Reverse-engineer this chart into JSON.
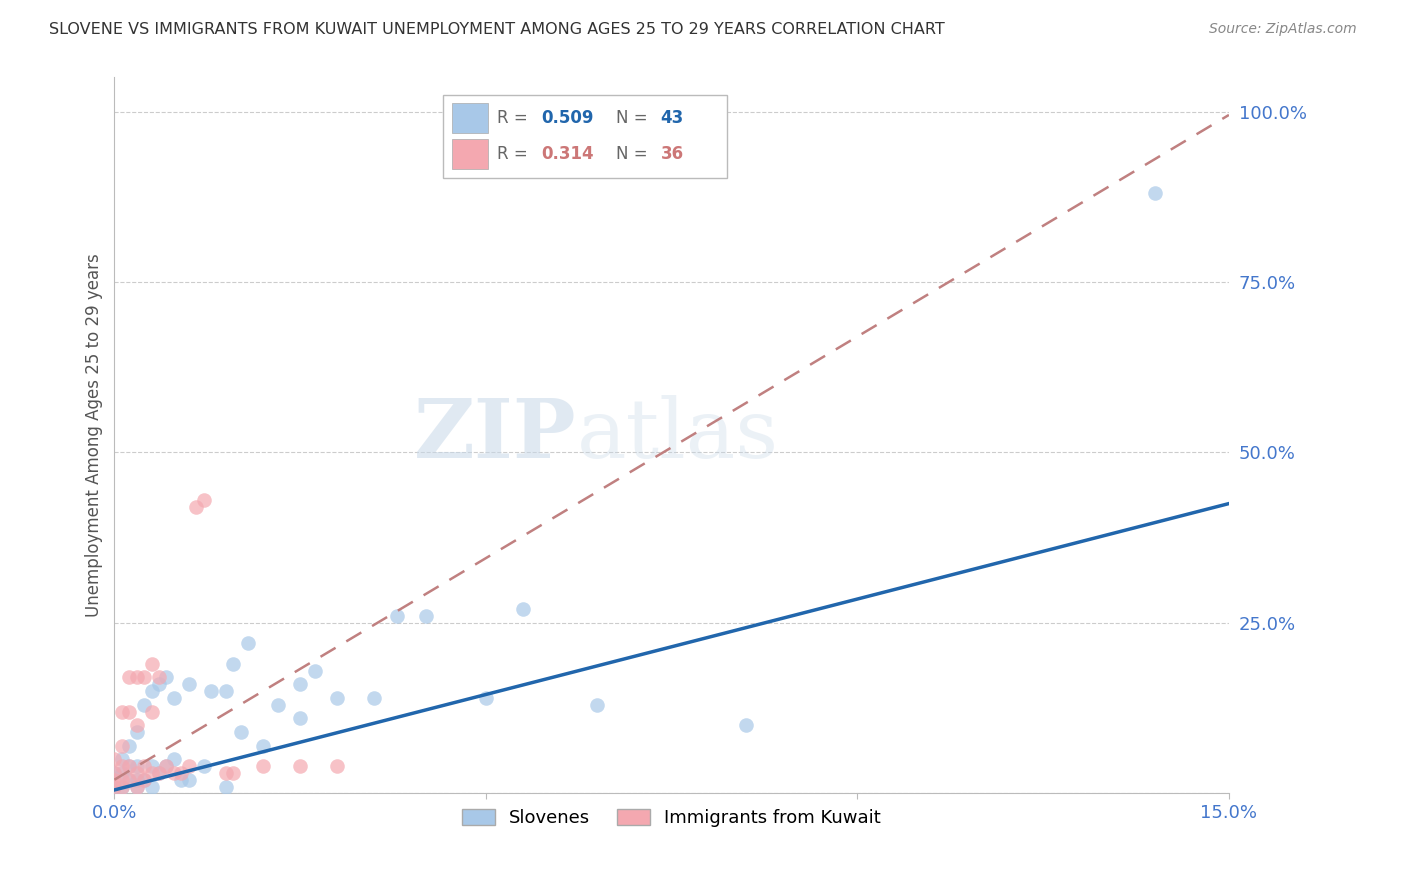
{
  "title": "SLOVENE VS IMMIGRANTS FROM KUWAIT UNEMPLOYMENT AMONG AGES 25 TO 29 YEARS CORRELATION CHART",
  "source": "Source: ZipAtlas.com",
  "ylabel": "Unemployment Among Ages 25 to 29 years",
  "xlim": [
    0.0,
    0.15
  ],
  "ylim": [
    0.0,
    1.05
  ],
  "xticks": [
    0.0,
    0.05,
    0.1,
    0.15
  ],
  "yticks": [
    0.0,
    0.25,
    0.5,
    0.75,
    1.0
  ],
  "ytick_labels": [
    "",
    "25.0%",
    "50.0%",
    "75.0%",
    "100.0%"
  ],
  "blue_color": "#a8c8e8",
  "pink_color": "#f4a8b0",
  "blue_line_color": "#2166ac",
  "pink_line_color": "#c08080",
  "blue_line_intercept": 0.005,
  "blue_line_slope": 2.8,
  "pink_line_intercept": 0.02,
  "pink_line_slope": 6.5,
  "pink_line_xmax": 0.048,
  "watermark_zip": "ZIP",
  "watermark_atlas": "atlas",
  "slovene_x": [
    0.0,
    0.0,
    0.001,
    0.001,
    0.001,
    0.002,
    0.002,
    0.002,
    0.003,
    0.003,
    0.003,
    0.003,
    0.004,
    0.004,
    0.005,
    0.005,
    0.005,
    0.006,
    0.006,
    0.007,
    0.007,
    0.008,
    0.008,
    0.009,
    0.01,
    0.01,
    0.012,
    0.013,
    0.015,
    0.015,
    0.016,
    0.017,
    0.018,
    0.02,
    0.022,
    0.025,
    0.025,
    0.027,
    0.03,
    0.035,
    0.038,
    0.042,
    0.05,
    0.055,
    0.065,
    0.085,
    0.14
  ],
  "slovene_y": [
    0.01,
    0.03,
    0.01,
    0.03,
    0.05,
    0.02,
    0.04,
    0.07,
    0.01,
    0.02,
    0.04,
    0.09,
    0.02,
    0.13,
    0.01,
    0.04,
    0.15,
    0.03,
    0.16,
    0.04,
    0.17,
    0.05,
    0.14,
    0.02,
    0.02,
    0.16,
    0.04,
    0.15,
    0.01,
    0.15,
    0.19,
    0.09,
    0.22,
    0.07,
    0.13,
    0.11,
    0.16,
    0.18,
    0.14,
    0.14,
    0.26,
    0.26,
    0.14,
    0.27,
    0.13,
    0.1,
    0.88
  ],
  "kuwait_x": [
    0.0,
    0.0,
    0.0,
    0.0,
    0.001,
    0.001,
    0.001,
    0.001,
    0.001,
    0.002,
    0.002,
    0.002,
    0.002,
    0.003,
    0.003,
    0.003,
    0.003,
    0.004,
    0.004,
    0.004,
    0.005,
    0.005,
    0.005,
    0.006,
    0.006,
    0.007,
    0.008,
    0.009,
    0.01,
    0.011,
    0.012,
    0.015,
    0.016,
    0.02,
    0.025,
    0.03
  ],
  "kuwait_y": [
    0.01,
    0.02,
    0.03,
    0.05,
    0.01,
    0.02,
    0.04,
    0.07,
    0.12,
    0.02,
    0.04,
    0.12,
    0.17,
    0.01,
    0.03,
    0.1,
    0.17,
    0.02,
    0.04,
    0.17,
    0.03,
    0.12,
    0.19,
    0.03,
    0.17,
    0.04,
    0.03,
    0.03,
    0.04,
    0.42,
    0.43,
    0.03,
    0.03,
    0.04,
    0.04,
    0.04
  ]
}
